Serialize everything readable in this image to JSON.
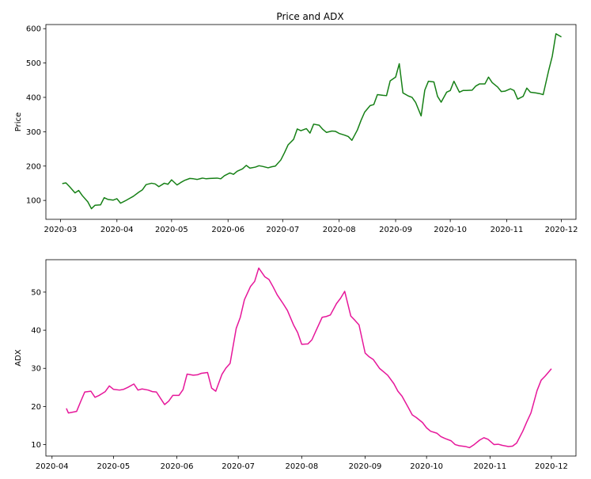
{
  "chart_data": [
    {
      "type": "line",
      "title": "Price and ADX",
      "xlabel": "",
      "ylabel": "Price",
      "color": "#168016",
      "x_ticks": [
        "2020-03",
        "2020-04",
        "2020-05",
        "2020-06",
        "2020-07",
        "2020-08",
        "2020-09",
        "2020-10",
        "2020-11",
        "2020-12"
      ],
      "y_ticks": [
        100,
        200,
        300,
        400,
        500,
        600
      ],
      "xlim": [
        "2020-02-22",
        "2020-12-09"
      ],
      "ylim": [
        45,
        612
      ],
      "grid": false,
      "series": [
        {
          "x": [
            "2020-03-02",
            "2020-03-04",
            "2020-03-06",
            "2020-03-09",
            "2020-03-11",
            "2020-03-13",
            "2020-03-16",
            "2020-03-18",
            "2020-03-20",
            "2020-03-23",
            "2020-03-25",
            "2020-03-27",
            "2020-03-30",
            "2020-04-01",
            "2020-04-03",
            "2020-04-06",
            "2020-04-08",
            "2020-04-10",
            "2020-04-13",
            "2020-04-15",
            "2020-04-17",
            "2020-04-20",
            "2020-04-22",
            "2020-04-24",
            "2020-04-27",
            "2020-04-29",
            "2020-05-01",
            "2020-05-04",
            "2020-05-06",
            "2020-05-08",
            "2020-05-11",
            "2020-05-13",
            "2020-05-15",
            "2020-05-18",
            "2020-05-20",
            "2020-05-22",
            "2020-05-26",
            "2020-05-28",
            "2020-05-30",
            "2020-06-02",
            "2020-06-04",
            "2020-06-06",
            "2020-06-09",
            "2020-06-11",
            "2020-06-13",
            "2020-06-16",
            "2020-06-18",
            "2020-06-20",
            "2020-06-23",
            "2020-06-25",
            "2020-06-27",
            "2020-06-30",
            "2020-07-02",
            "2020-07-04",
            "2020-07-07",
            "2020-07-09",
            "2020-07-11",
            "2020-07-14",
            "2020-07-16",
            "2020-07-18",
            "2020-07-21",
            "2020-07-23",
            "2020-07-25",
            "2020-07-28",
            "2020-07-30",
            "2020-08-01",
            "2020-08-04",
            "2020-08-06",
            "2020-08-08",
            "2020-08-11",
            "2020-08-13",
            "2020-08-15",
            "2020-08-18",
            "2020-08-20",
            "2020-08-22",
            "2020-08-25",
            "2020-08-27",
            "2020-08-29",
            "2020-09-01",
            "2020-09-03",
            "2020-09-05",
            "2020-09-08",
            "2020-09-10",
            "2020-09-12",
            "2020-09-15",
            "2020-09-17",
            "2020-09-19",
            "2020-09-22",
            "2020-09-24",
            "2020-09-26",
            "2020-09-29",
            "2020-10-01",
            "2020-10-03",
            "2020-10-06",
            "2020-10-08",
            "2020-10-10",
            "2020-10-13",
            "2020-10-15",
            "2020-10-17",
            "2020-10-20",
            "2020-10-22",
            "2020-10-24",
            "2020-10-27",
            "2020-10-29",
            "2020-10-31",
            "2020-11-03",
            "2020-11-05",
            "2020-11-07",
            "2020-11-10",
            "2020-11-12",
            "2020-11-14",
            "2020-11-17",
            "2020-11-19",
            "2020-11-21",
            "2020-11-24",
            "2020-11-26",
            "2020-11-28",
            "2020-12-01"
          ],
          "y": [
            149,
            151,
            140,
            122,
            129,
            114,
            96,
            76,
            86,
            87,
            108,
            103,
            101,
            105,
            92,
            100,
            106,
            112,
            124,
            131,
            146,
            150,
            148,
            140,
            150,
            147,
            160,
            145,
            152,
            158,
            164,
            163,
            161,
            165,
            163,
            164,
            165,
            163,
            172,
            180,
            176,
            185,
            192,
            202,
            194,
            197,
            201,
            199,
            195,
            198,
            200,
            218,
            239,
            262,
            278,
            308,
            303,
            309,
            296,
            322,
            319,
            307,
            298,
            302,
            301,
            295,
            290,
            286,
            275,
            305,
            333,
            357,
            376,
            379,
            408,
            406,
            405,
            448,
            459,
            498,
            413,
            404,
            400,
            385,
            346,
            421,
            447,
            445,
            403,
            386,
            415,
            420,
            447,
            415,
            420,
            420,
            421,
            433,
            439,
            439,
            459,
            443,
            430,
            417,
            418,
            425,
            420,
            395,
            403,
            427,
            415,
            413,
            411,
            408,
            478,
            520,
            585,
            576
          ]
        }
      ]
    },
    {
      "type": "line",
      "title": "",
      "xlabel": "",
      "ylabel": "ADX",
      "color": "#e6179a",
      "x_ticks": [
        "2020-04",
        "2020-05",
        "2020-06",
        "2020-07",
        "2020-08",
        "2020-09",
        "2020-10",
        "2020-11",
        "2020-12"
      ],
      "y_ticks": [
        10,
        20,
        30,
        40,
        50
      ],
      "xlim": [
        "2020-03-29",
        "2020-12-13"
      ],
      "ylim": [
        7,
        58.5
      ],
      "grid": false,
      "series": [
        {
          "x": [
            "2020-04-08",
            "2020-04-09",
            "2020-04-13",
            "2020-04-15",
            "2020-04-17",
            "2020-04-20",
            "2020-04-22",
            "2020-04-24",
            "2020-04-27",
            "2020-04-29",
            "2020-05-01",
            "2020-05-04",
            "2020-05-06",
            "2020-05-08",
            "2020-05-11",
            "2020-05-13",
            "2020-05-15",
            "2020-05-18",
            "2020-05-20",
            "2020-05-22",
            "2020-05-26",
            "2020-05-28",
            "2020-05-30",
            "2020-06-02",
            "2020-06-04",
            "2020-06-06",
            "2020-06-09",
            "2020-06-11",
            "2020-06-13",
            "2020-06-16",
            "2020-06-18",
            "2020-06-20",
            "2020-06-23",
            "2020-06-25",
            "2020-06-27",
            "2020-06-30",
            "2020-07-02",
            "2020-07-04",
            "2020-07-07",
            "2020-07-09",
            "2020-07-11",
            "2020-07-14",
            "2020-07-16",
            "2020-07-18",
            "2020-07-20",
            "2020-07-21",
            "2020-07-23",
            "2020-07-25",
            "2020-07-28",
            "2020-07-30",
            "2020-08-01",
            "2020-08-04",
            "2020-08-06",
            "2020-08-08",
            "2020-08-11",
            "2020-08-13",
            "2020-08-15",
            "2020-08-18",
            "2020-08-20",
            "2020-08-22",
            "2020-08-25",
            "2020-08-27",
            "2020-08-29",
            "2020-09-01",
            "2020-09-03",
            "2020-09-05",
            "2020-09-08",
            "2020-09-10",
            "2020-09-12",
            "2020-09-15",
            "2020-09-17",
            "2020-09-19",
            "2020-09-22",
            "2020-09-24",
            "2020-09-26",
            "2020-09-29",
            "2020-10-01",
            "2020-10-03",
            "2020-10-06",
            "2020-10-08",
            "2020-10-10",
            "2020-10-13",
            "2020-10-15",
            "2020-10-17",
            "2020-10-20",
            "2020-10-22",
            "2020-10-24",
            "2020-10-27",
            "2020-10-29",
            "2020-10-31",
            "2020-11-03",
            "2020-11-05",
            "2020-11-07",
            "2020-11-10",
            "2020-11-12",
            "2020-11-14",
            "2020-11-17",
            "2020-11-19",
            "2020-11-21",
            "2020-11-24",
            "2020-11-26",
            "2020-11-28",
            "2020-12-01"
          ],
          "y": [
            19.5,
            18.3,
            18.7,
            21.3,
            23.8,
            24.0,
            22.4,
            22.9,
            23.9,
            25.4,
            24.5,
            24.3,
            24.5,
            25.0,
            25.9,
            24.3,
            24.6,
            24.3,
            23.9,
            23.8,
            20.5,
            21.4,
            22.9,
            22.9,
            24.4,
            28.5,
            28.2,
            28.3,
            28.7,
            28.9,
            24.8,
            24.0,
            28.4,
            30.1,
            31.3,
            40.5,
            43.4,
            48.0,
            51.5,
            52.8,
            56.3,
            54.0,
            53.3,
            51.4,
            49.3,
            48.5,
            46.9,
            45.2,
            41.4,
            39.4,
            36.3,
            36.4,
            37.5,
            39.9,
            43.4,
            43.6,
            44.0,
            47.0,
            48.4,
            50.2,
            43.7,
            42.6,
            41.4,
            34.0,
            33.0,
            32.3,
            30.0,
            29.1,
            28.2,
            26.0,
            24.0,
            22.7,
            19.8,
            17.8,
            17.1,
            15.8,
            14.4,
            13.5,
            13.0,
            12.1,
            11.6,
            11.0,
            10.0,
            9.7,
            9.5,
            9.2,
            9.9,
            11.2,
            11.8,
            11.4,
            10.0,
            10.1,
            9.8,
            9.5,
            9.6,
            10.4,
            13.5,
            16.0,
            18.3,
            24.2,
            26.9,
            28.0,
            29.9
          ]
        }
      ]
    }
  ]
}
